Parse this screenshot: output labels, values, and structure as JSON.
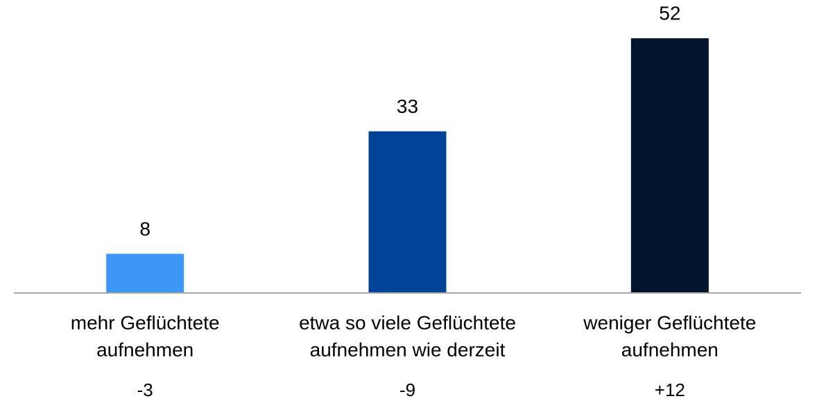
{
  "chart_data": {
    "type": "bar",
    "categories": [
      [
        "mehr Geflüchtete",
        "aufnehmen"
      ],
      [
        "etwa so viele Geflüchtete",
        "aufnehmen wie derzeit"
      ],
      [
        "weniger Geflüchtete",
        "aufnehmen"
      ]
    ],
    "values": [
      8,
      33,
      52
    ],
    "colors": [
      "#3d97f5",
      "#00449a",
      "#00142b"
    ],
    "annotations": [
      "-3",
      "-9",
      "+12"
    ],
    "ylim": [
      0,
      55
    ]
  }
}
